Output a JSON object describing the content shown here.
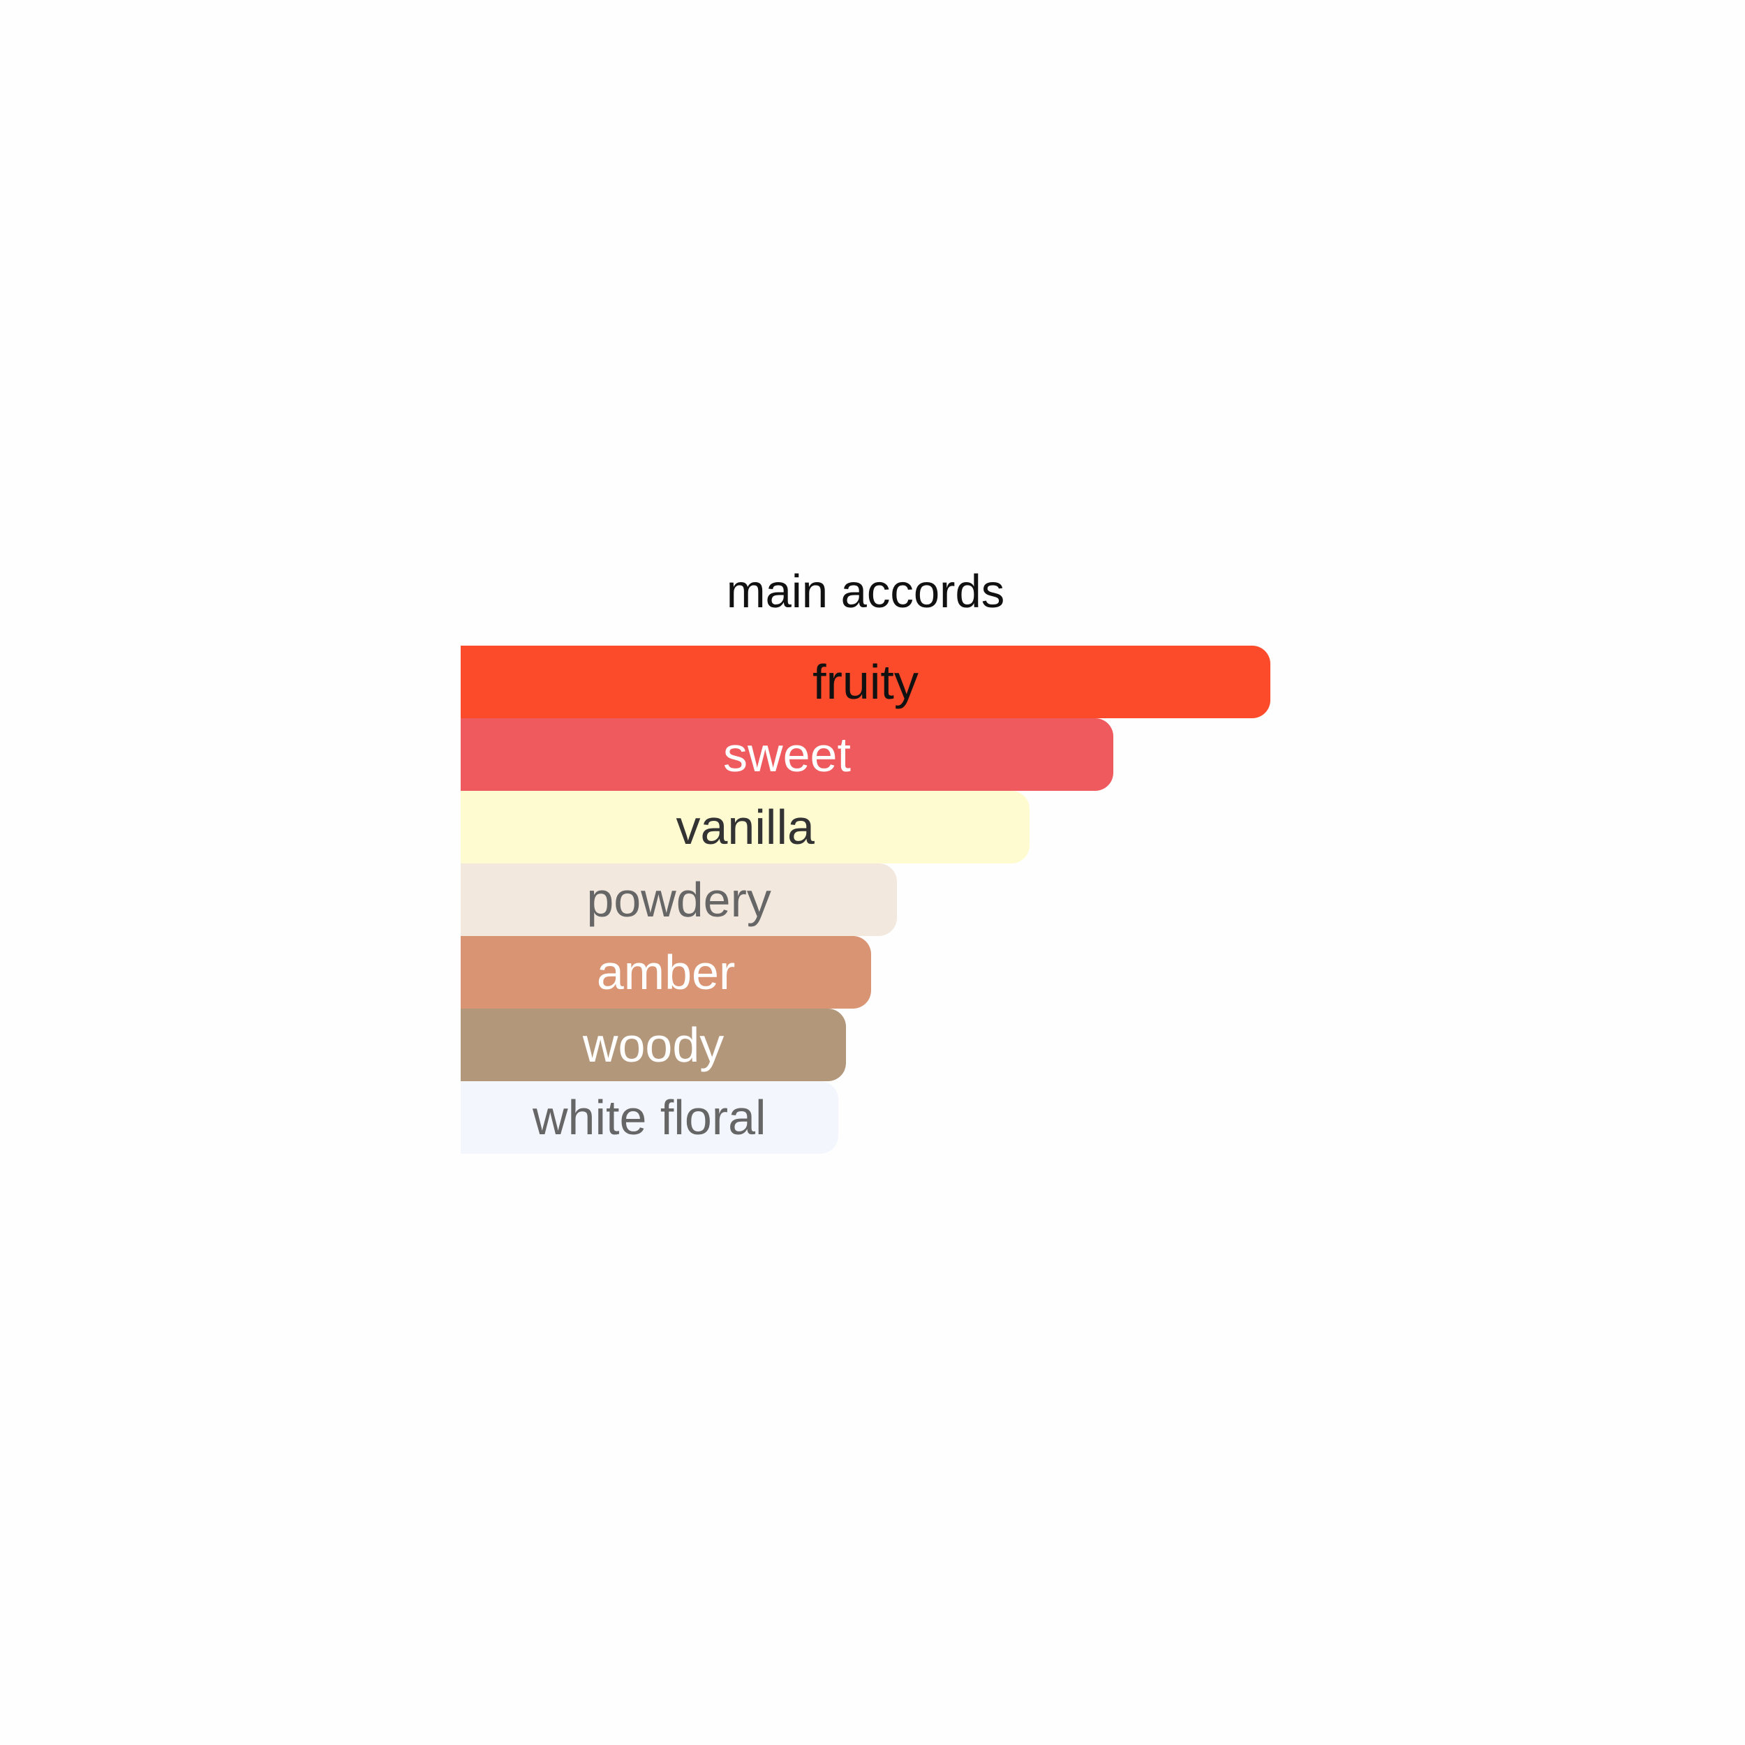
{
  "chart_data": {
    "type": "bar",
    "orientation": "horizontal",
    "title": "main accords",
    "xlabel": "",
    "ylabel": "",
    "grid": false,
    "legend": "none",
    "categories": [
      "fruity",
      "sweet",
      "vanilla",
      "powdery",
      "amber",
      "woody",
      "white floral"
    ],
    "values": [
      100,
      80.6,
      70.3,
      53.9,
      50.7,
      47.6,
      46.6
    ],
    "xlim": [
      0,
      100
    ],
    "colors": [
      "#fc4b2a",
      "#ee5a5d",
      "#fffbd0",
      "#f3e8de",
      "#d99573",
      "#b3977b",
      "#f3f6fd"
    ],
    "label_colors": [
      "#111111",
      "#ffffff",
      "#333333",
      "#666666",
      "#ffffff",
      "#ffffff",
      "#666666"
    ]
  }
}
